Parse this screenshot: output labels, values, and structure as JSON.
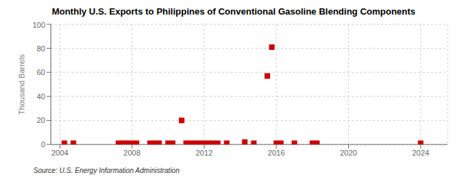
{
  "chart_data": {
    "type": "scatter",
    "title": "Monthly U.S. Exports to Philippines of Conventional Gasoline Blending Components",
    "ylabel": "Thousand Barrels",
    "source": "Source: U.S. Energy Information Administration",
    "color": "#cc0000",
    "marker": "square",
    "grid": true,
    "xlim": [
      2003.5,
      2025.5
    ],
    "xticks": [
      2004,
      2008,
      2012,
      2016,
      2020,
      2024
    ],
    "ylim": [
      0,
      100
    ],
    "yticks": [
      0,
      20,
      40,
      60,
      80,
      100
    ],
    "x": [
      2004.25,
      2004.75,
      2007.25,
      2007.5,
      2007.75,
      2008.0,
      2008.25,
      2009.0,
      2009.25,
      2009.5,
      2010.0,
      2010.25,
      2010.75,
      2011.0,
      2011.25,
      2011.5,
      2011.75,
      2012.0,
      2012.25,
      2012.5,
      2012.75,
      2013.25,
      2014.25,
      2014.75,
      2015.5,
      2015.75,
      2016.0,
      2016.25,
      2017.0,
      2018.0,
      2018.25,
      2024.0
    ],
    "values": [
      1,
      1,
      1,
      1,
      1,
      1,
      1,
      1,
      1,
      1,
      1,
      1,
      20,
      1,
      1,
      1,
      1,
      1,
      1,
      1,
      1,
      1,
      2,
      1,
      57,
      81,
      1,
      1,
      1,
      1,
      1,
      1
    ]
  }
}
